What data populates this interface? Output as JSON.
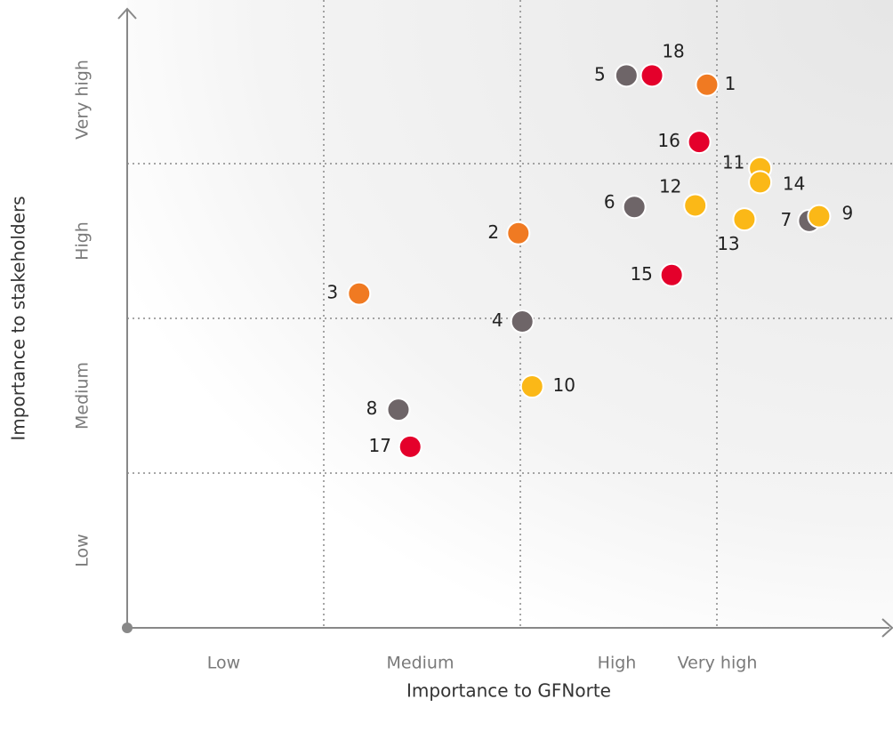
{
  "chart_data": {
    "type": "scatter",
    "x_title": "Importance to GFNorte",
    "y_title": "Importance to stakeholders",
    "x_levels": [
      "Low",
      "Medium",
      "High",
      "Very high"
    ],
    "y_levels": [
      "Low",
      "Medium",
      "High",
      "Very high"
    ],
    "xlim": [
      0,
      4
    ],
    "ylim": [
      0,
      4
    ],
    "xticks": [
      1,
      2,
      3
    ],
    "yticks": [
      1,
      2,
      3
    ],
    "grid": true,
    "series": [
      {
        "labels": [
          "1",
          "2",
          "3",
          "4",
          "5",
          "6",
          "7",
          "8",
          "9",
          "10",
          "11",
          "12",
          "13",
          "14",
          "15",
          "16",
          "17",
          "18"
        ],
        "x": [
          2.95,
          1.99,
          1.18,
          2.01,
          2.54,
          2.58,
          3.47,
          1.38,
          3.52,
          2.06,
          3.22,
          2.89,
          3.14,
          3.22,
          2.77,
          2.91,
          1.44,
          2.67
        ],
        "values": [
          3.51,
          2.55,
          2.16,
          1.98,
          3.57,
          2.72,
          2.63,
          1.41,
          2.66,
          1.56,
          2.97,
          2.73,
          2.64,
          2.88,
          2.28,
          3.14,
          1.17,
          3.57
        ],
        "colors": [
          "#f07a22",
          "#f07a22",
          "#f07a22",
          "#6e6568",
          "#6e6568",
          "#6e6568",
          "#6e6568",
          "#6e6568",
          "#fbb817",
          "#fbb817",
          "#fbb817",
          "#fbb817",
          "#fbb817",
          "#fbb817",
          "#e4002b",
          "#e4002b",
          "#e4002b",
          "#e4002b"
        ]
      }
    ]
  }
}
